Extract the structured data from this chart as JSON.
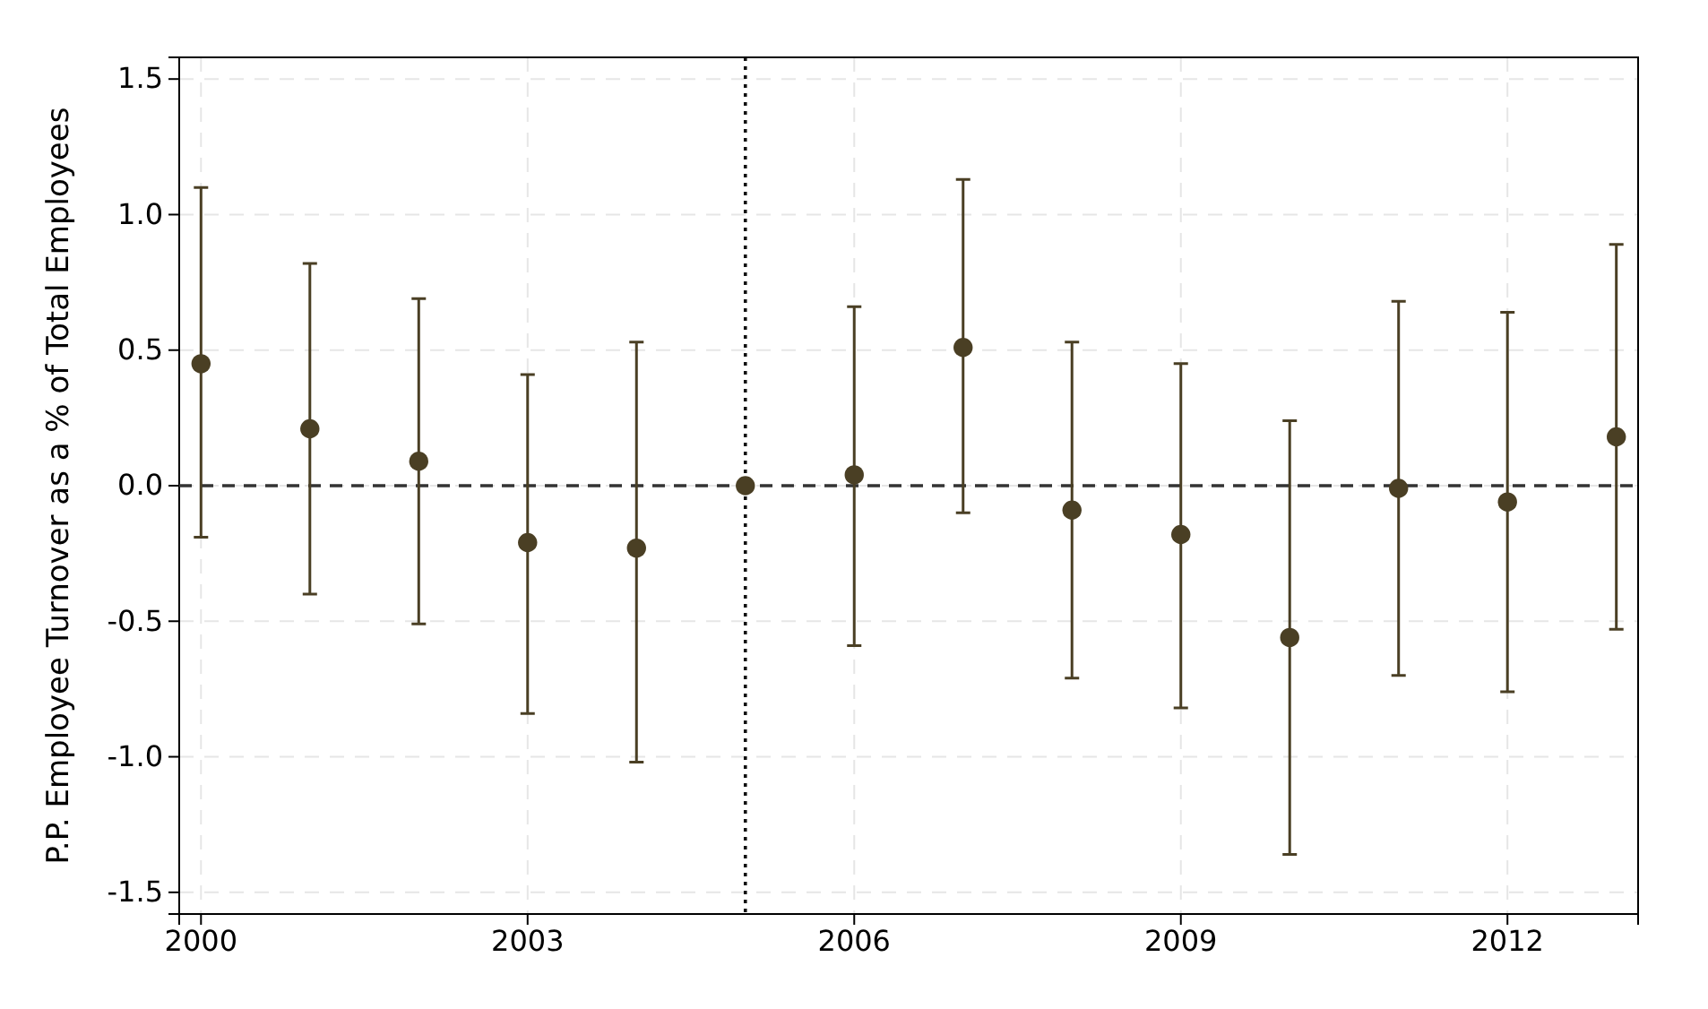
{
  "chart_data": {
    "type": "scatter",
    "ylabel": "P.P. Employee Turnover as a % of Total Employees",
    "x": [
      2000,
      2001,
      2002,
      2003,
      2004,
      2005,
      2006,
      2007,
      2008,
      2009,
      2010,
      2011,
      2012,
      2013
    ],
    "series": [
      {
        "color": "#4a3f24",
        "values": [
          0.45,
          0.21,
          0.09,
          -0.21,
          -0.23,
          0,
          0.04,
          0.51,
          -0.09,
          -0.18,
          -0.56,
          -0.01,
          -0.06,
          0.18
        ],
        "errors": [
          [
            -0.19,
            1.1
          ],
          [
            -0.4,
            0.82
          ],
          [
            -0.51,
            0.69
          ],
          [
            -0.84,
            0.41
          ],
          [
            -1.02,
            0.53
          ],
          null,
          [
            -0.59,
            0.66
          ],
          [
            -0.1,
            1.13
          ],
          [
            -0.71,
            0.53
          ],
          [
            -0.82,
            0.45
          ],
          [
            -1.36,
            0.24
          ],
          [
            -0.7,
            0.68
          ],
          [
            -0.76,
            0.64
          ],
          [
            -0.53,
            0.89
          ]
        ]
      }
    ],
    "xlim": [
      1999.8,
      2013.2
    ],
    "xticks": [
      2000,
      2003,
      2006,
      2009,
      2012
    ],
    "ylim": [
      -1.58,
      1.58
    ],
    "yticks": [
      {
        "value": -1.5,
        "label": "-1.5"
      },
      {
        "value": -1,
        "label": "-1.0"
      },
      {
        "value": -0.5,
        "label": "-0.5"
      },
      {
        "value": 0,
        "label": "0.0"
      },
      {
        "value": 0.5,
        "label": "0.5"
      },
      {
        "value": 1,
        "label": "1.0"
      },
      {
        "value": 1.5,
        "label": "1.5"
      }
    ],
    "grid": true,
    "marker": "circle",
    "ref_lines": [
      {
        "axis": "y",
        "value": 0,
        "color": "#333333",
        "line_style": "dashed"
      },
      {
        "axis": "x",
        "value": 2005,
        "color": "#111111",
        "line_style": "dotted"
      }
    ]
  }
}
